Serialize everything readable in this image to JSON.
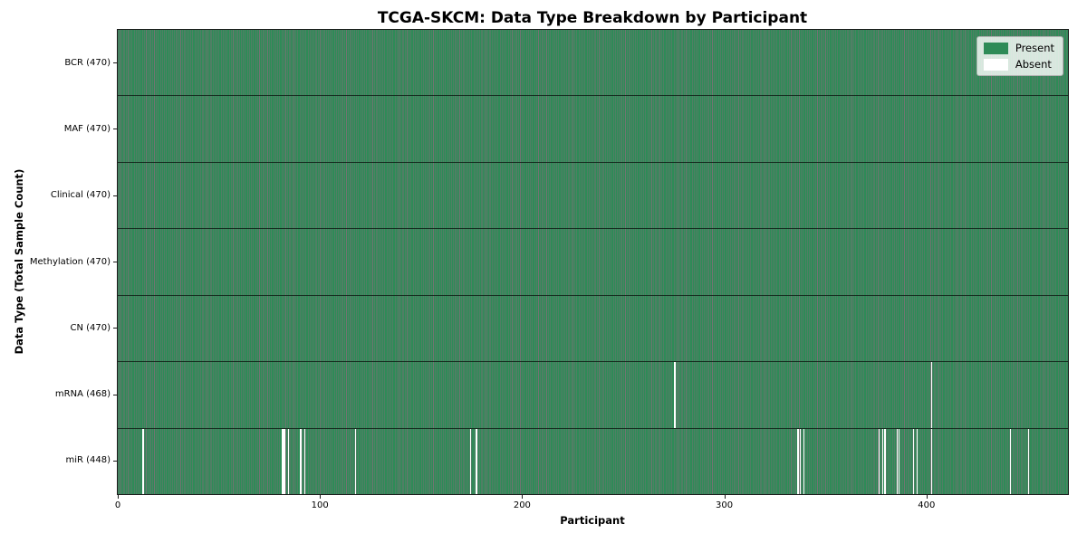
{
  "chart_data": {
    "type": "heatmap",
    "title": "TCGA-SKCM: Data Type Breakdown by Participant",
    "xlabel": "Participant",
    "ylabel": "Data Type (Total Sample Count)",
    "n_participants": 470,
    "x_ticks": [
      0,
      100,
      200,
      300,
      400
    ],
    "xlim": [
      0,
      470
    ],
    "grid": false,
    "legend_position": "upper right",
    "legend": [
      {
        "label": "Present",
        "color": "#2e8b57"
      },
      {
        "label": "Absent",
        "color": "#ffffff"
      }
    ],
    "rows": [
      {
        "label": "BCR (470)",
        "data_type": "BCR",
        "present_count": 470,
        "absent_participants": []
      },
      {
        "label": "MAF (470)",
        "data_type": "MAF",
        "present_count": 470,
        "absent_participants": []
      },
      {
        "label": "Clinical (470)",
        "data_type": "Clinical",
        "present_count": 470,
        "absent_participants": []
      },
      {
        "label": "Methylation (470)",
        "data_type": "Methylation",
        "present_count": 470,
        "absent_participants": []
      },
      {
        "label": "CN (470)",
        "data_type": "CN",
        "present_count": 470,
        "absent_participants": []
      },
      {
        "label": "mRNA (468)",
        "data_type": "mRNA",
        "present_count": 468,
        "absent_participants": [
          275,
          402
        ]
      },
      {
        "label": "miR (448)",
        "data_type": "miR",
        "present_count": 448,
        "absent_participants": [
          12,
          81,
          82,
          84,
          90,
          92,
          117,
          174,
          177,
          336,
          337,
          339,
          376,
          378,
          379,
          385,
          386,
          393,
          395,
          402,
          441,
          450
        ]
      }
    ],
    "colors": {
      "present": "#2e8b57",
      "absent": "#ffffff",
      "cell_edge": "rgba(0,0,0,0.55)",
      "row_divider": "rgba(0,0,0,0.65)",
      "axes_border": "#1a1a1a"
    }
  }
}
